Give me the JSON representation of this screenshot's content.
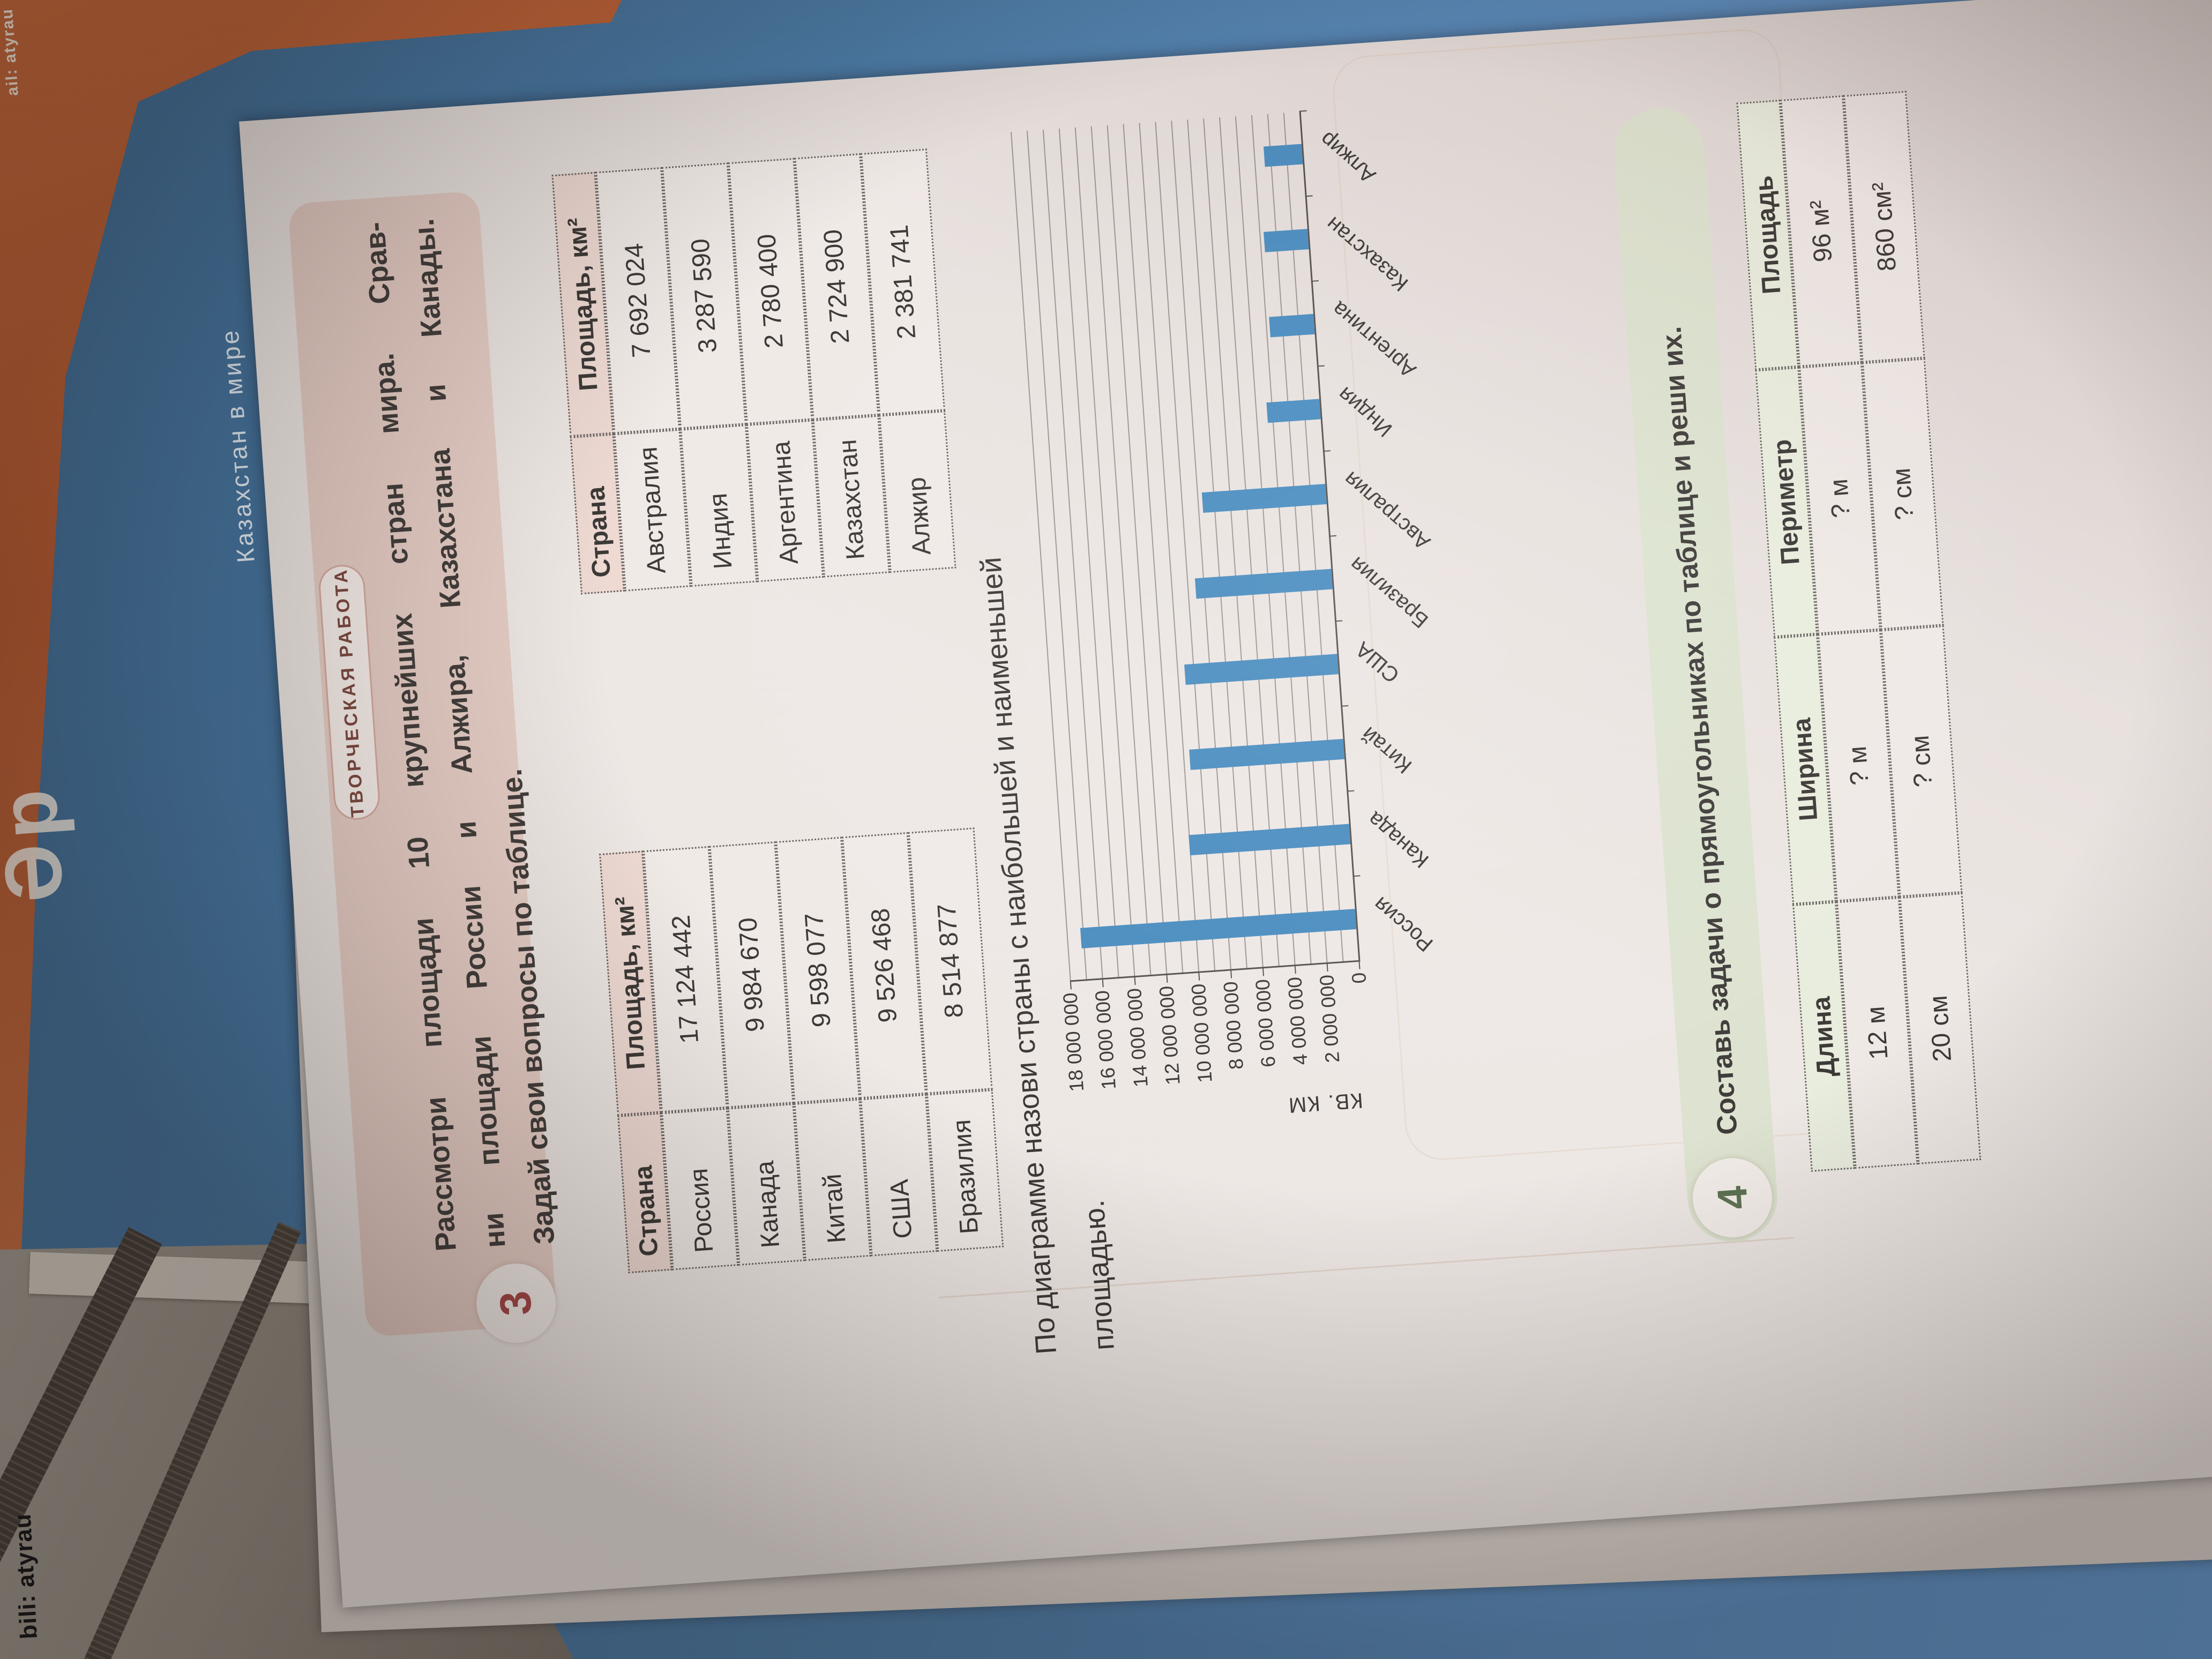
{
  "scene": {
    "cover_label": "Казахстан в мире",
    "spine_letters": "Әр",
    "spine_top_text": "ail: atyrau",
    "desk_contact": "bili: atyrau"
  },
  "task3": {
    "number": "3",
    "badge": "ТВОРЧЕСКАЯ РАБОТА",
    "lines": [
      "Рассмотри площади 10 крупнейших стран мира. Срав-",
      "ни площади России и Алжира, Казахстана и Канады.",
      "Задай свои вопросы по таблице."
    ]
  },
  "tables": [
    {
      "headers": [
        "Страна",
        "Площадь, км²"
      ],
      "rows": [
        [
          "Россия",
          "17 124 442"
        ],
        [
          "Канада",
          "9 984 670"
        ],
        [
          "Китай",
          "9 598 077"
        ],
        [
          "США",
          "9 526 468"
        ],
        [
          "Бразилия",
          "8 514 877"
        ]
      ]
    },
    {
      "headers": [
        "Страна",
        "Площадь, км²"
      ],
      "rows": [
        [
          "Австралия",
          "7 692 024"
        ],
        [
          "Индия",
          "3 287 590"
        ],
        [
          "Аргентина",
          "2 780 400"
        ],
        [
          "Казахстан",
          "2 724 900"
        ],
        [
          "Алжир",
          "2 381 741"
        ]
      ]
    }
  ],
  "prompt": {
    "line1": "По диаграмме назови страны с наибольшей и наименьшей",
    "line2": "площадью."
  },
  "chart_data": {
    "type": "bar",
    "title": "",
    "xlabel": "",
    "ylabel": "КВ. КМ",
    "categories": [
      "Россия",
      "Канада",
      "Китай",
      "США",
      "Бразилия",
      "Австралия",
      "Индия",
      "Аргентина",
      "Казахстан",
      "Алжир"
    ],
    "values": [
      17124442,
      9984670,
      9598077,
      9526468,
      8514877,
      7692024,
      3287590,
      2780400,
      2724900,
      2381741
    ],
    "ylim": [
      0,
      18000000
    ],
    "tick_step": 2000000,
    "grid_step": 1000000,
    "tick_labels": [
      "18 000 000",
      "16 000 000",
      "14 000 000",
      "12 000 000",
      "10 000 000",
      "8 000 000",
      "6 000 000",
      "4 000 000",
      "2 000 000",
      "0"
    ],
    "grid": true,
    "legend_position": "none",
    "bar_color": "#4a8dc0"
  },
  "task4": {
    "number": "4",
    "heading": "Составь задачи о прямоугольниках по таблице и реши их.",
    "table": {
      "headers": [
        "Длина",
        "Ширина",
        "Периметр",
        "Площадь"
      ],
      "rows": [
        [
          "12 м",
          "? м",
          "? м",
          "96 м²"
        ],
        [
          "20 см",
          "? см",
          "? см",
          "860 см²"
        ]
      ]
    }
  }
}
